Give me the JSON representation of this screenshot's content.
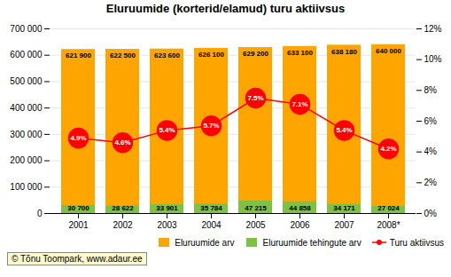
{
  "chart_data": {
    "type": "bar",
    "title": "Eluruumide (korterid/elamud) turu aktiivsus",
    "categories": [
      "2001",
      "2002",
      "2003",
      "2004",
      "2005",
      "2006",
      "2007",
      "2008*"
    ],
    "series": [
      {
        "name": "Eluruumide arv",
        "color": "#FFA500",
        "values": [
          621900,
          622500,
          623600,
          626100,
          629200,
          633100,
          638180,
          640000
        ],
        "value_labels": [
          "621 900",
          "622 500",
          "623 600",
          "626 100",
          "629 200",
          "633 100",
          "638 180",
          "640 000"
        ]
      },
      {
        "name": "Eluruumide tehingute arv",
        "color": "#7DC242",
        "values": [
          30700,
          28622,
          33901,
          35784,
          47215,
          44858,
          34171,
          27024
        ],
        "value_labels": [
          "30 700",
          "28 622",
          "33 901",
          "35 784",
          "47 215",
          "44 858",
          "34 171",
          "27 024"
        ]
      },
      {
        "name": "Turu aktiivsus",
        "type": "line",
        "axis": "y2",
        "color": "red",
        "marker": "circle",
        "values": [
          4.9,
          4.6,
          5.4,
          5.7,
          7.5,
          7.1,
          5.4,
          4.2
        ],
        "value_labels": [
          "4.9%",
          "4.6%",
          "5.4%",
          "5.7%",
          "7.5%",
          "7.1%",
          "5.4%",
          "4.2%"
        ]
      }
    ],
    "ylim": [
      0,
      700000
    ],
    "yticks": [
      0,
      {
        "value": 100000,
        "label": "100 000"
      },
      {
        "value": 200000,
        "label": "200 000"
      },
      {
        "value": 300000,
        "label": "300 000"
      },
      {
        "value": 400000,
        "label": "400 000"
      },
      {
        "value": 500000,
        "label": "500 000"
      },
      {
        "value": 600000,
        "label": "600 000"
      },
      {
        "value": 700000,
        "label": "700 000"
      }
    ],
    "y2lim": [
      0,
      12
    ],
    "y2ticks": [
      {
        "value": 0,
        "label": "0%"
      },
      {
        "value": 2,
        "label": "2%"
      },
      {
        "value": 4,
        "label": "4%"
      },
      {
        "value": 6,
        "label": "6%"
      },
      {
        "value": 8,
        "label": "8%"
      },
      {
        "value": 10,
        "label": "10%"
      },
      {
        "value": 12,
        "label": "12%"
      }
    ],
    "grid": true,
    "legend": "lower right",
    "data_labels": true,
    "annotations": [
      "© Tõnu Toompark, www.adaur.ee"
    ]
  }
}
